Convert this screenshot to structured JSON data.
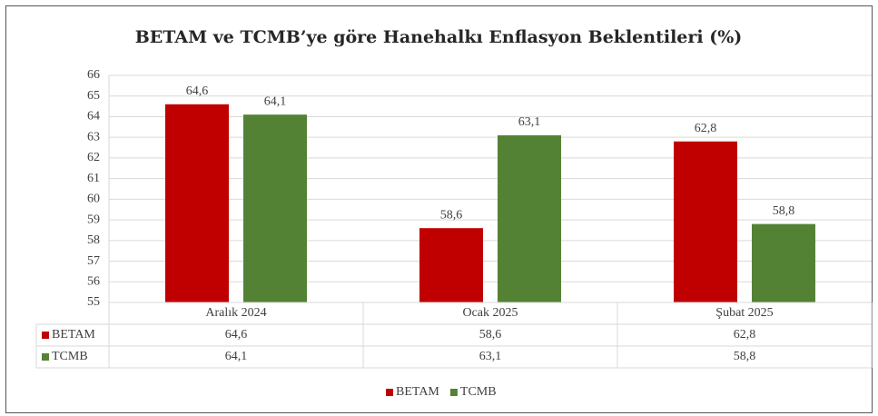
{
  "chart_data": {
    "type": "bar",
    "title": "BETAM ve TCMB’ye göre Hanehalkı Enflasyon Beklentileri (%)",
    "categories": [
      "Aralık 2024",
      "Ocak 2025",
      "Şubat 2025"
    ],
    "series": [
      {
        "name": "BETAM",
        "color": "#c00000",
        "values": [
          64.6,
          58.6,
          62.8
        ],
        "value_labels": [
          "64,6",
          "58,6",
          "62,8"
        ]
      },
      {
        "name": "TCMB",
        "color": "#548235",
        "values": [
          64.1,
          63.1,
          58.8
        ],
        "value_labels": [
          "64,1",
          "63,1",
          "58,8"
        ]
      }
    ],
    "ylim": [
      55,
      66
    ],
    "yticks": [
      55,
      56,
      57,
      58,
      59,
      60,
      61,
      62,
      63,
      64,
      65,
      66
    ],
    "grid": true,
    "data_table": true,
    "legend": "bottom"
  }
}
